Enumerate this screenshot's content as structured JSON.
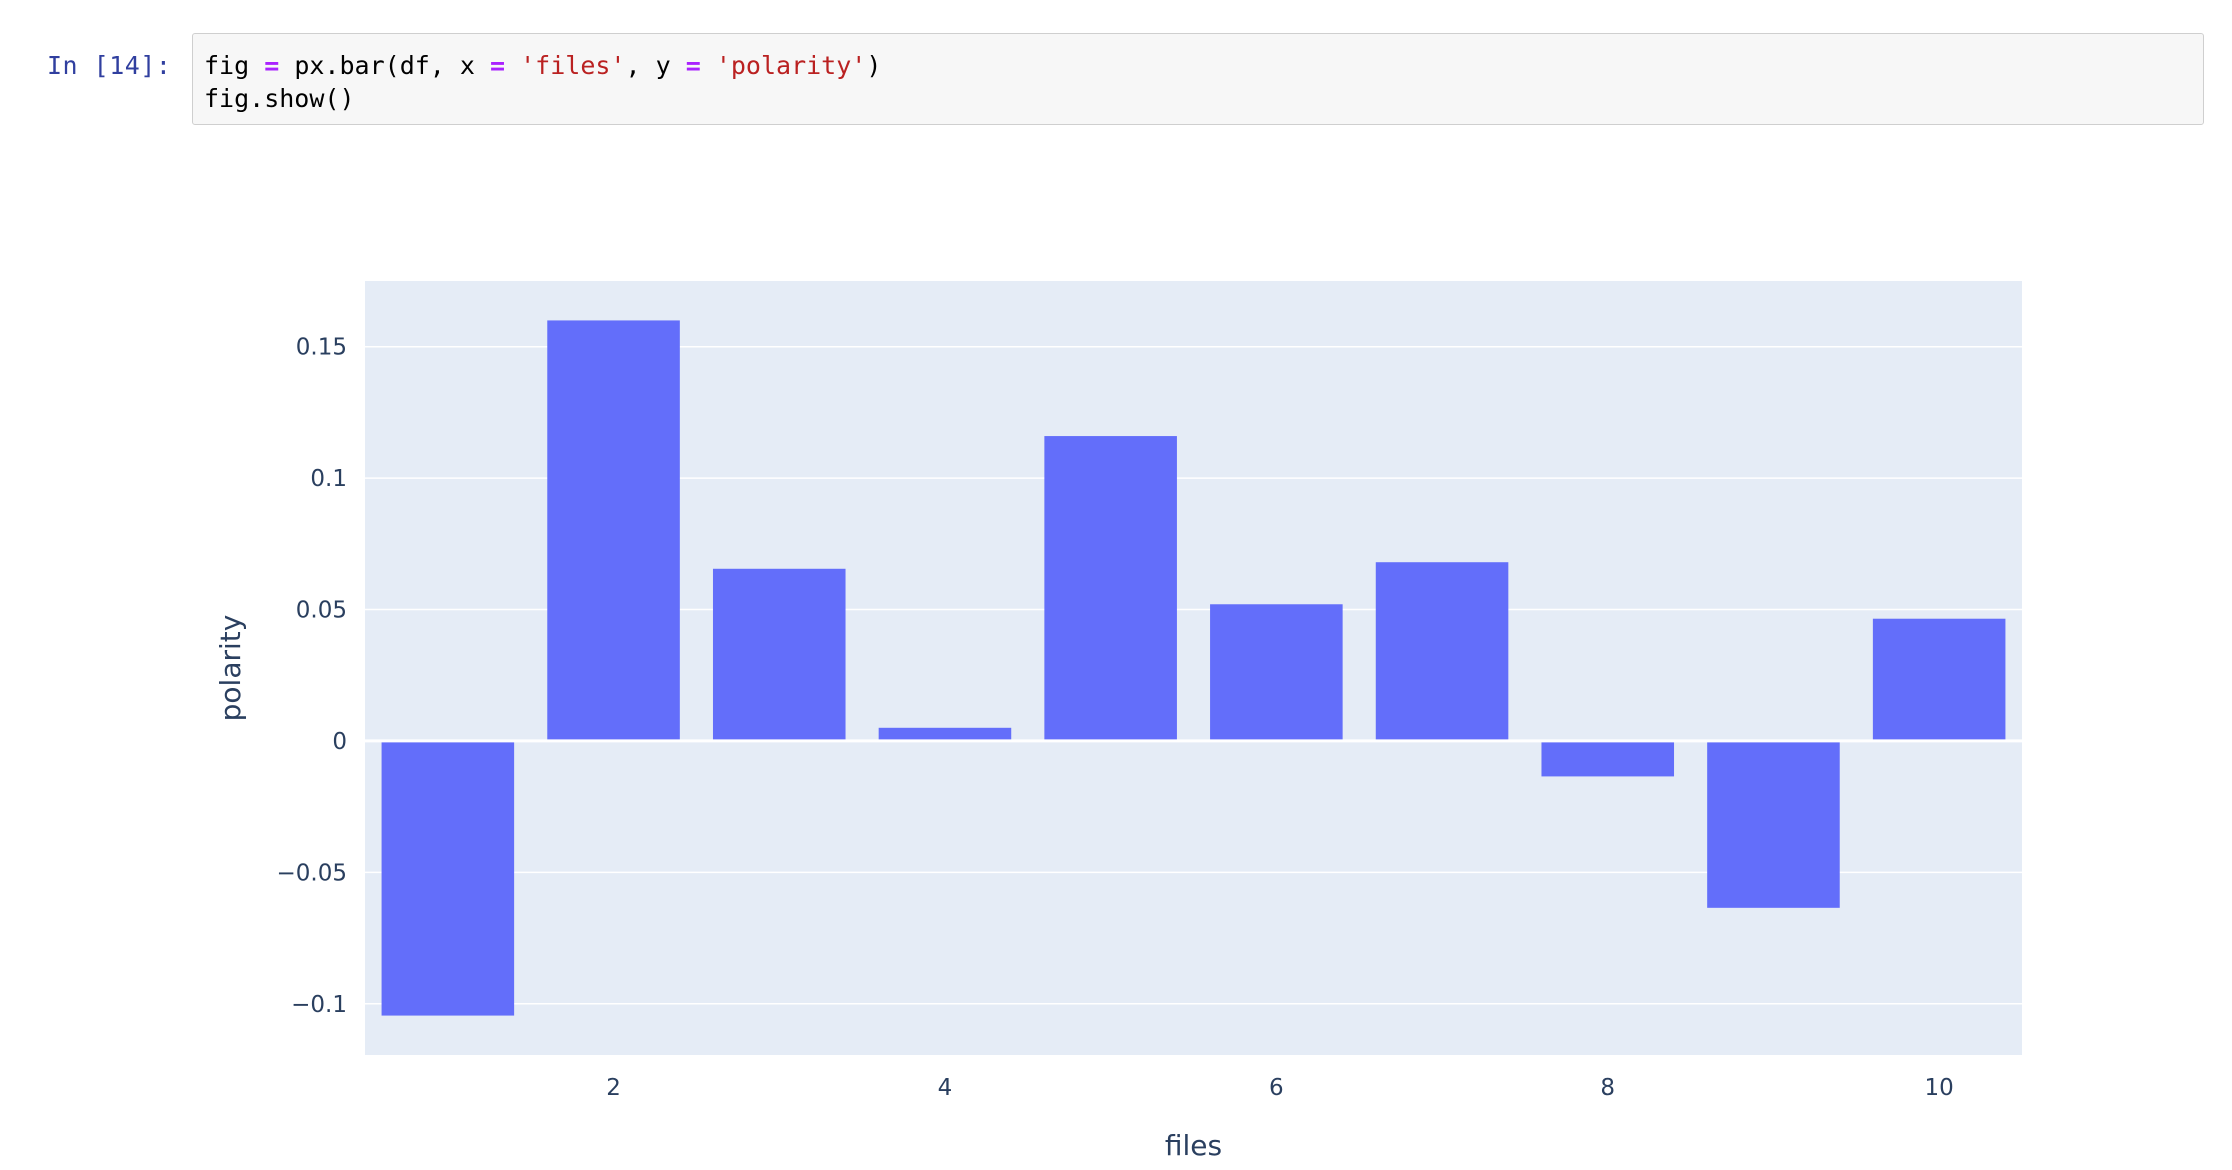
{
  "cell": {
    "prompt": "In [14]:",
    "code_lines": [
      [
        {
          "t": "fig ",
          "k": "plain"
        },
        {
          "t": "=",
          "k": "op"
        },
        {
          "t": " px.bar(df, x ",
          "k": "plain"
        },
        {
          "t": "=",
          "k": "op"
        },
        {
          "t": " ",
          "k": "plain"
        },
        {
          "t": "'files'",
          "k": "str"
        },
        {
          "t": ", y ",
          "k": "plain"
        },
        {
          "t": "=",
          "k": "op"
        },
        {
          "t": " ",
          "k": "plain"
        },
        {
          "t": "'polarity'",
          "k": "str"
        },
        {
          "t": ")",
          "k": "plain"
        }
      ],
      [
        {
          "t": "fig.show()",
          "k": "plain"
        }
      ]
    ]
  },
  "colors": {
    "plot_bg": "#e5ecf6",
    "bar": "#636efa",
    "grid": "#ffffff",
    "text": "#2a3f5f",
    "prompt": "#303f9f",
    "keyword_op": "#aa22ff",
    "string": "#ba2121"
  },
  "chart_data": {
    "type": "bar",
    "x": [
      1,
      2,
      3,
      4,
      5,
      6,
      7,
      8,
      9,
      10
    ],
    "values": [
      -0.1045,
      0.16,
      0.0655,
      0.005,
      0.116,
      0.052,
      0.068,
      -0.0135,
      -0.0635,
      0.0465
    ],
    "xlabel": "files",
    "ylabel": "polarity",
    "xlim": [
      0.5,
      10.5
    ],
    "ylim": [
      -0.1195,
      0.175
    ],
    "xticks": [
      2,
      4,
      6,
      8,
      10
    ],
    "xtick_labels": [
      "2",
      "4",
      "6",
      "8",
      "10"
    ],
    "yticks": [
      -0.1,
      -0.05,
      0,
      0.05,
      0.1,
      0.15
    ],
    "ytick_labels": [
      "−0.1",
      "−0.05",
      "0",
      "0.05",
      "0.1",
      "0.15"
    ],
    "grid": true
  }
}
